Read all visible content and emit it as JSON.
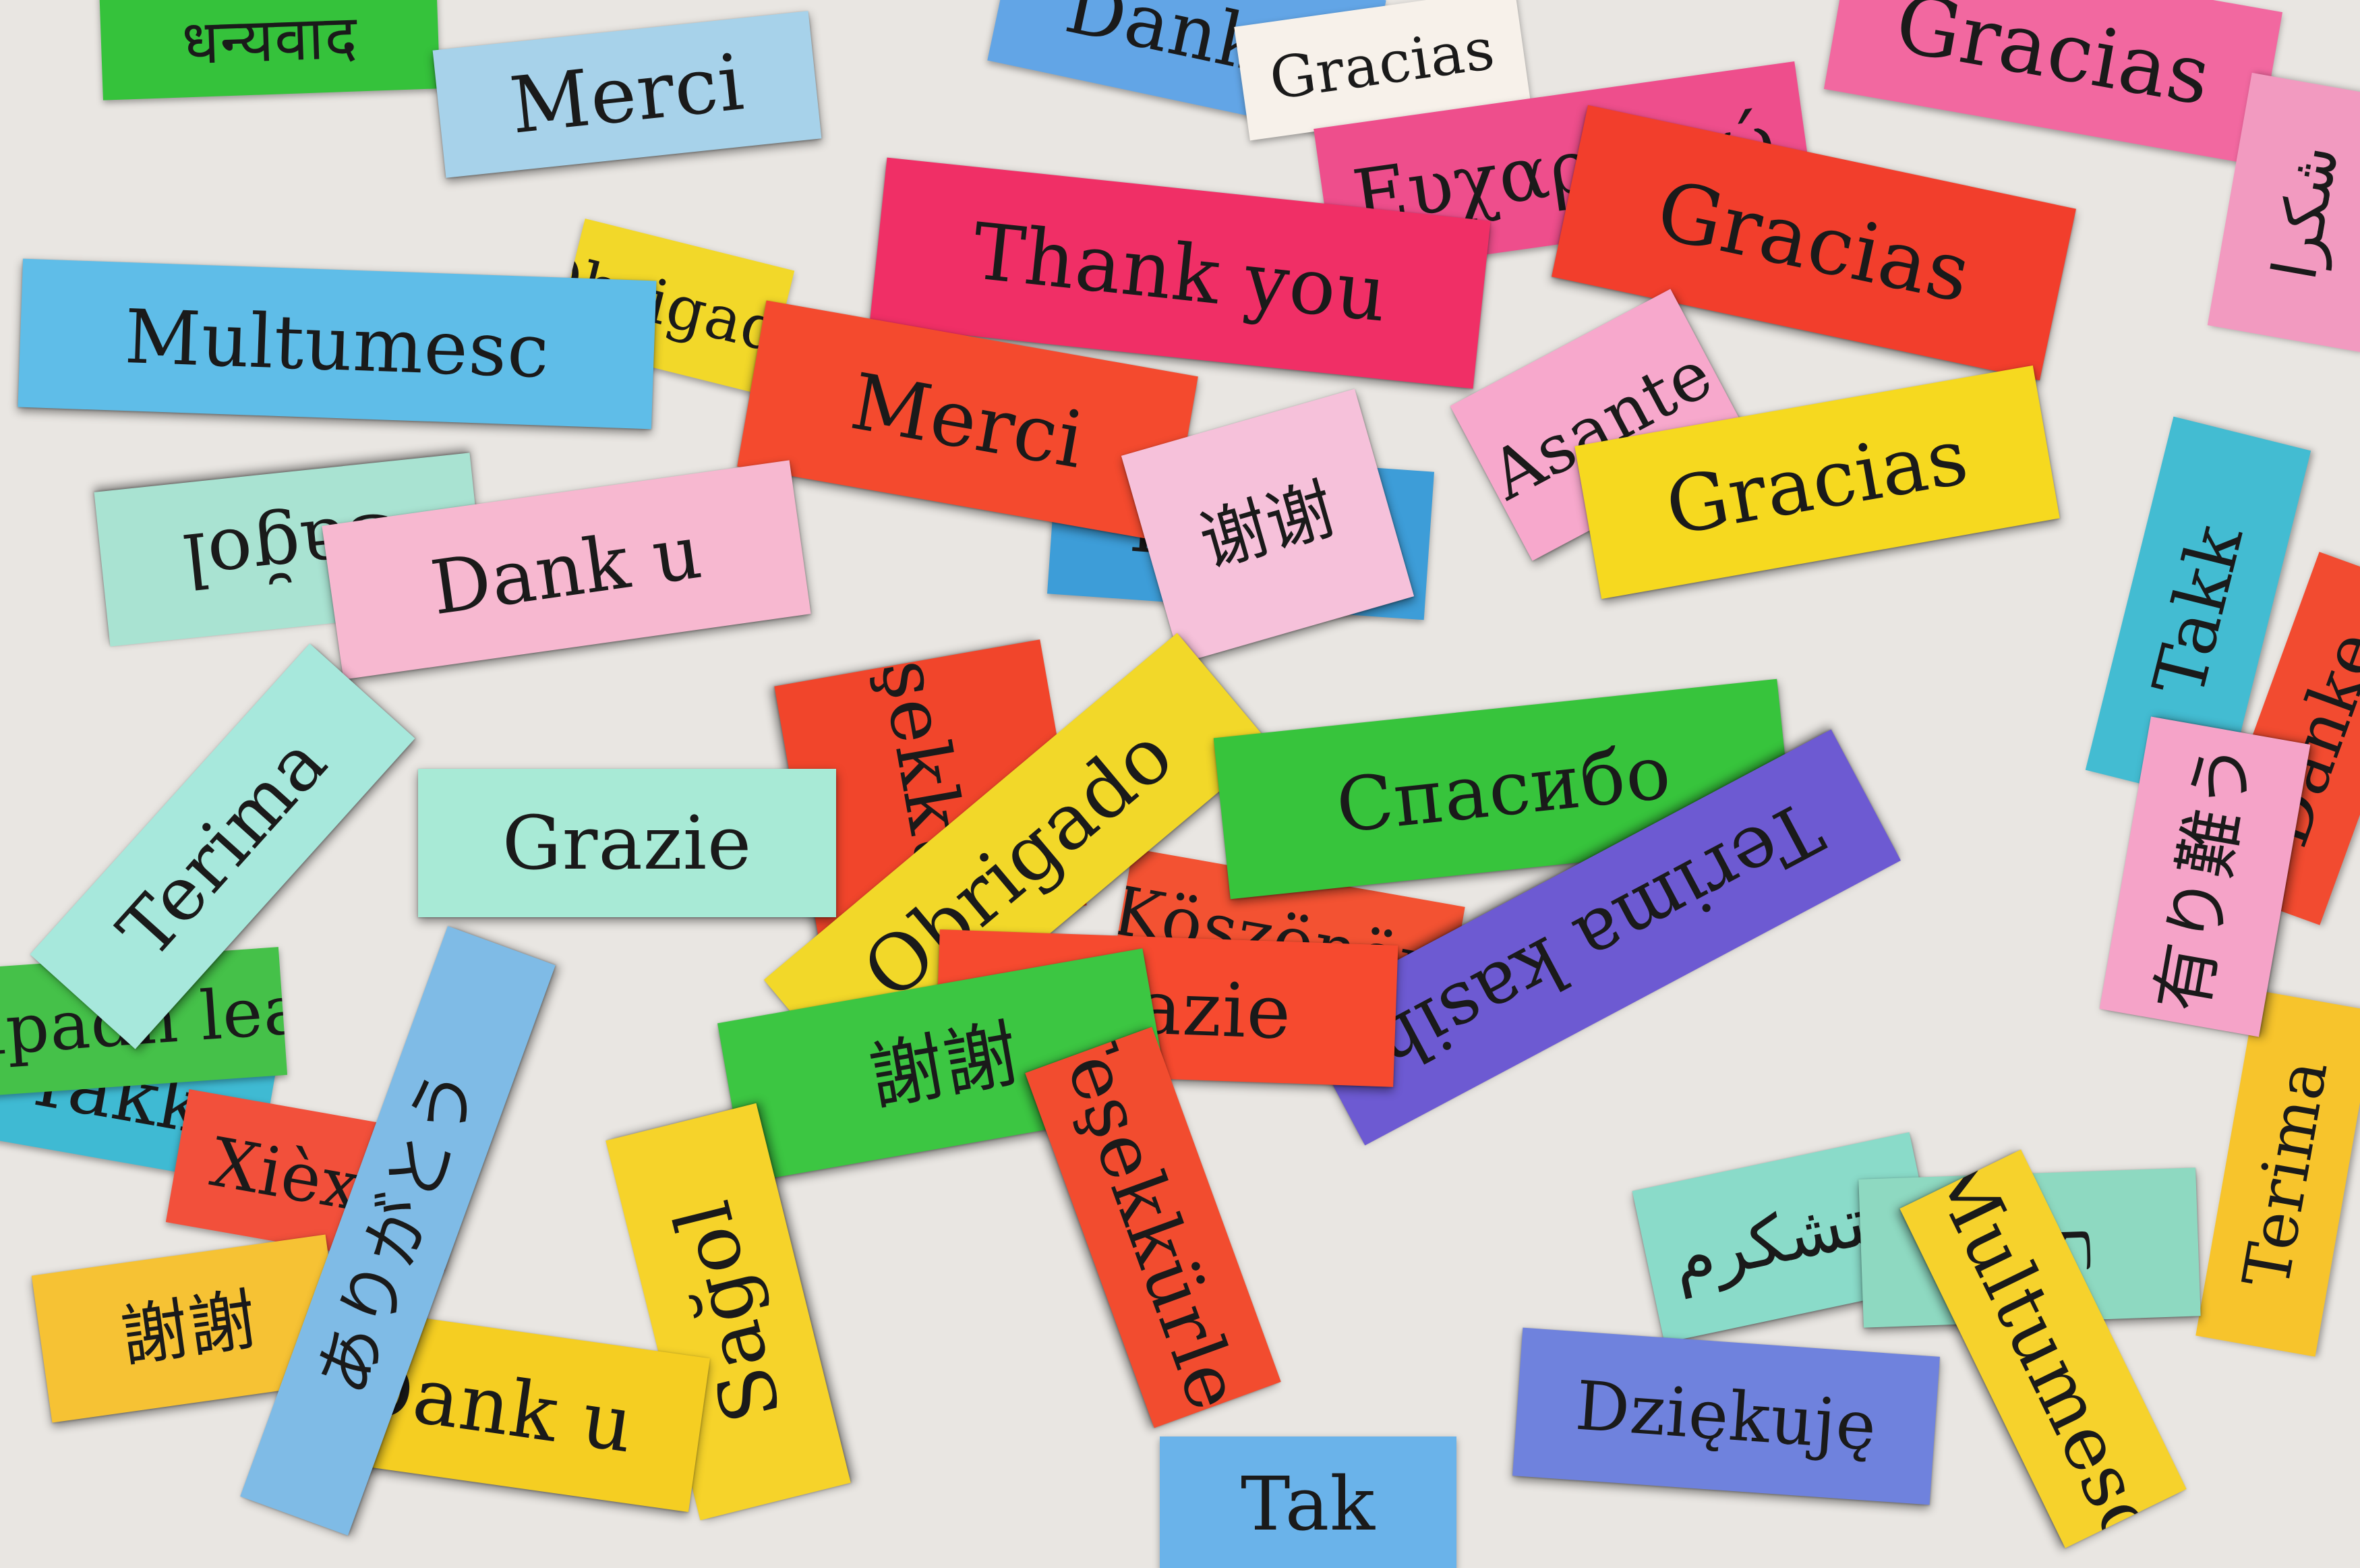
{
  "image": {
    "description": "A heap of torn colored paper strips, each printed with the phrase 'thank you' in a different language"
  },
  "colors": {
    "background": "#e9e6e2",
    "ink": "#1a1a1a"
  },
  "strips": [
    {
      "text": "धन्यवाद",
      "color": "#35c23b"
    },
    {
      "text": "Danke",
      "color": "#62a5e6"
    },
    {
      "text": "Gracias",
      "color": "#f268a0"
    },
    {
      "text": "Merci",
      "color": "#a7d2ea"
    },
    {
      "text": "Gracias",
      "color": "#f7f1ea"
    },
    {
      "text": "Ευχαριστώ",
      "color": "#ee4e8c"
    },
    {
      "text": "Multumesc",
      "color": "#5fbde8"
    },
    {
      "text": "Thank you",
      "color": "#f02f66"
    },
    {
      "text": "Gracias",
      "color": "#f23e2c"
    },
    {
      "text": "Merci",
      "color": "#f44a2e"
    },
    {
      "text": "谢谢",
      "color": "#f6c1da"
    },
    {
      "text": "Asante",
      "color": "#f7a8cc"
    },
    {
      "text": "Gracias",
      "color": "#f6d91f"
    },
    {
      "text": "Sağol",
      "color": "#a9e3d2"
    },
    {
      "text": "Dank u",
      "color": "#f7b8d0"
    },
    {
      "text": "Hvala",
      "color": "#3d9dd8"
    },
    {
      "text": "Teşekkürler",
      "color": "#f1452b"
    },
    {
      "text": "Terima",
      "color": "#a7e8dc"
    },
    {
      "text": "Grazie",
      "color": "#a8ead6"
    },
    {
      "text": "Obrigado",
      "color": "#f2d829"
    },
    {
      "text": "Спасибо",
      "color": "#37c43c"
    },
    {
      "text": "Terima kasih",
      "color": "#6d5ad2"
    },
    {
      "text": "Grazie",
      "color": "#f64a2f"
    },
    {
      "text": "謝謝",
      "color": "#3cc642"
    },
    {
      "text": "有り難う",
      "color": "#f5a3c8"
    },
    {
      "text": "Köszönöm",
      "color": "#f35232"
    },
    {
      "text": "Sağol",
      "color": "#f6d32a"
    },
    {
      "text": "Teşekkürler",
      "color": "#f24c2f"
    },
    {
      "text": "متشكرم",
      "color": "#8adbc9"
    },
    {
      "text": "תודה",
      "color": "#8ed9c1"
    },
    {
      "text": "Dank u",
      "color": "#f5ce22"
    },
    {
      "text": "謝謝",
      "color": "#f6c234"
    },
    {
      "text": "ありがとう",
      "color": "#7fbbe6"
    },
    {
      "text": "Dziękuję",
      "color": "#6f82dd"
    },
    {
      "text": "Multumesc",
      "color": "#f6d22c"
    },
    {
      "text": "Tak",
      "color": "#6ab3ea"
    },
    {
      "text": "Takk",
      "color": "#3fbad3"
    },
    {
      "text": "Xièxie",
      "color": "#f2503b"
    },
    {
      "text": "شكرا",
      "color": "#f29ac0"
    },
    {
      "text": "Danke",
      "color": "#f24b30"
    },
    {
      "text": "Terima",
      "color": "#f7c42c"
    },
    {
      "text": "Obrigado",
      "color": "#f2d829"
    },
    {
      "text": "Takk",
      "color": "#43bcd2"
    },
    {
      "text": "Tapadh leat",
      "color": "#45c149"
    }
  ]
}
